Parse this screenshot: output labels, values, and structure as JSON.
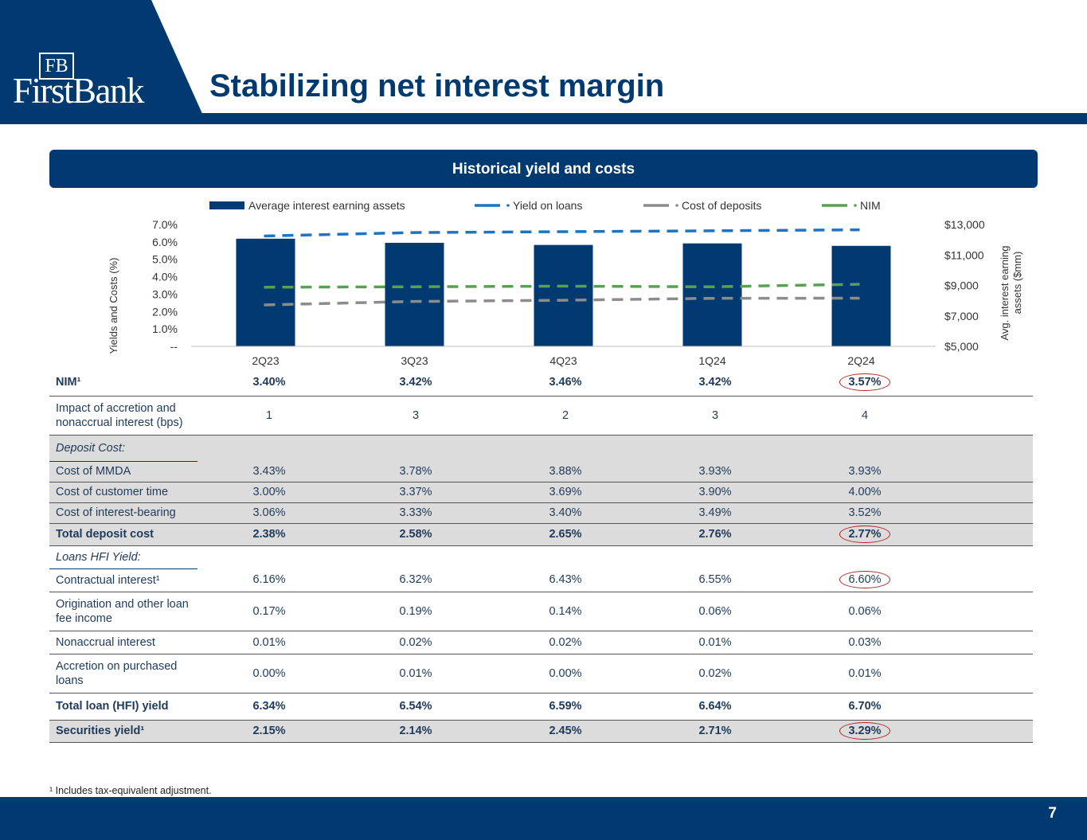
{
  "header": {
    "logo_monogram": "FB",
    "logo_text": "FirstBank",
    "title": "Stabilizing net interest margin"
  },
  "section_title": "Historical yield and costs",
  "chart_data": {
    "type": "bar",
    "categories": [
      "2Q23",
      "3Q23",
      "4Q23",
      "1Q24",
      "2Q24"
    ],
    "bars": {
      "name": "Average interest earning assets",
      "axis": "right",
      "values": [
        12070,
        11800,
        11660,
        11760,
        11600
      ],
      "color": "#003a70"
    },
    "lines": [
      {
        "name": "Yield on loans",
        "axis": "left",
        "values": [
          6.34,
          6.54,
          6.59,
          6.64,
          6.7
        ],
        "color": "#1f74c2"
      },
      {
        "name": "Cost of deposits",
        "axis": "left",
        "values": [
          2.38,
          2.58,
          2.65,
          2.76,
          2.77
        ],
        "color": "#8c8c8c"
      },
      {
        "name": "NIM",
        "axis": "left",
        "values": [
          3.4,
          3.42,
          3.46,
          3.42,
          3.57
        ],
        "color": "#5aa052"
      }
    ],
    "left_axis": {
      "label": "Yields and Costs (%)",
      "range": [
        0,
        7
      ],
      "tick_values": [
        0,
        1,
        2,
        3,
        4,
        5,
        6,
        7
      ],
      "tick_labels": [
        "--",
        "1.0%",
        "2.0%",
        "3.0%",
        "4.0%",
        "5.0%",
        "6.0%",
        "7.0%"
      ]
    },
    "right_axis": {
      "label_line1": "Avg. interest earning",
      "label_line2": "assets ($mm)",
      "range": [
        5000,
        13000
      ],
      "tick_values": [
        5000,
        7000,
        9000,
        11000,
        13000
      ],
      "tick_labels": [
        "$5,000",
        "$7,000",
        "$9,000",
        "$11,000",
        "$13,000"
      ]
    },
    "legend_position": "top"
  },
  "table": {
    "rows": [
      {
        "label": "NIM¹",
        "values": [
          "3.40%",
          "3.42%",
          "3.46%",
          "3.42%",
          "3.57%"
        ],
        "style": "bold",
        "circled": true
      },
      {
        "label": "Impact of accretion and nonaccrual interest (bps)",
        "values": [
          "1",
          "3",
          "2",
          "3",
          "4"
        ],
        "style": "tall"
      },
      {
        "label": "Deposit Cost:",
        "values": [],
        "style": "section-gray"
      },
      {
        "label": "Cost of MMDA",
        "values": [
          "3.43%",
          "3.78%",
          "3.88%",
          "3.93%",
          "3.93%"
        ],
        "style": "gray"
      },
      {
        "label": "Cost of customer time",
        "values": [
          "3.00%",
          "3.37%",
          "3.69%",
          "3.90%",
          "4.00%"
        ],
        "style": "gray"
      },
      {
        "label": "Cost of interest-bearing",
        "values": [
          "3.06%",
          "3.33%",
          "3.40%",
          "3.49%",
          "3.52%"
        ],
        "style": "gray"
      },
      {
        "label": "Total deposit cost",
        "values": [
          "2.38%",
          "2.58%",
          "2.65%",
          "2.76%",
          "2.77%"
        ],
        "style": "gray-bold",
        "circled": true
      },
      {
        "label": "Loans HFI Yield:",
        "values": [],
        "style": "section"
      },
      {
        "label": "Contractual interest¹",
        "values": [
          "6.16%",
          "6.32%",
          "6.43%",
          "6.55%",
          "6.60%"
        ],
        "style": "plain",
        "circled": true
      },
      {
        "label": "Origination and other loan fee income",
        "values": [
          "0.17%",
          "0.19%",
          "0.14%",
          "0.06%",
          "0.06%"
        ],
        "style": "tall"
      },
      {
        "label": "Nonaccrual interest",
        "values": [
          "0.01%",
          "0.02%",
          "0.02%",
          "0.01%",
          "0.03%"
        ],
        "style": "plain"
      },
      {
        "label": "Accretion on purchased loans",
        "values": [
          "0.00%",
          "0.01%",
          "0.00%",
          "0.02%",
          "0.01%"
        ],
        "style": "tall"
      },
      {
        "label": "Total loan (HFI) yield",
        "values": [
          "6.34%",
          "6.54%",
          "6.59%",
          "6.64%",
          "6.70%"
        ],
        "style": "bold"
      },
      {
        "label": "Securities yield¹",
        "values": [
          "2.15%",
          "2.14%",
          "2.45%",
          "2.71%",
          "3.29%"
        ],
        "style": "gray-bold",
        "circled": true
      }
    ]
  },
  "footnote": "¹ Includes tax-equivalent adjustment.",
  "page_number": "7"
}
